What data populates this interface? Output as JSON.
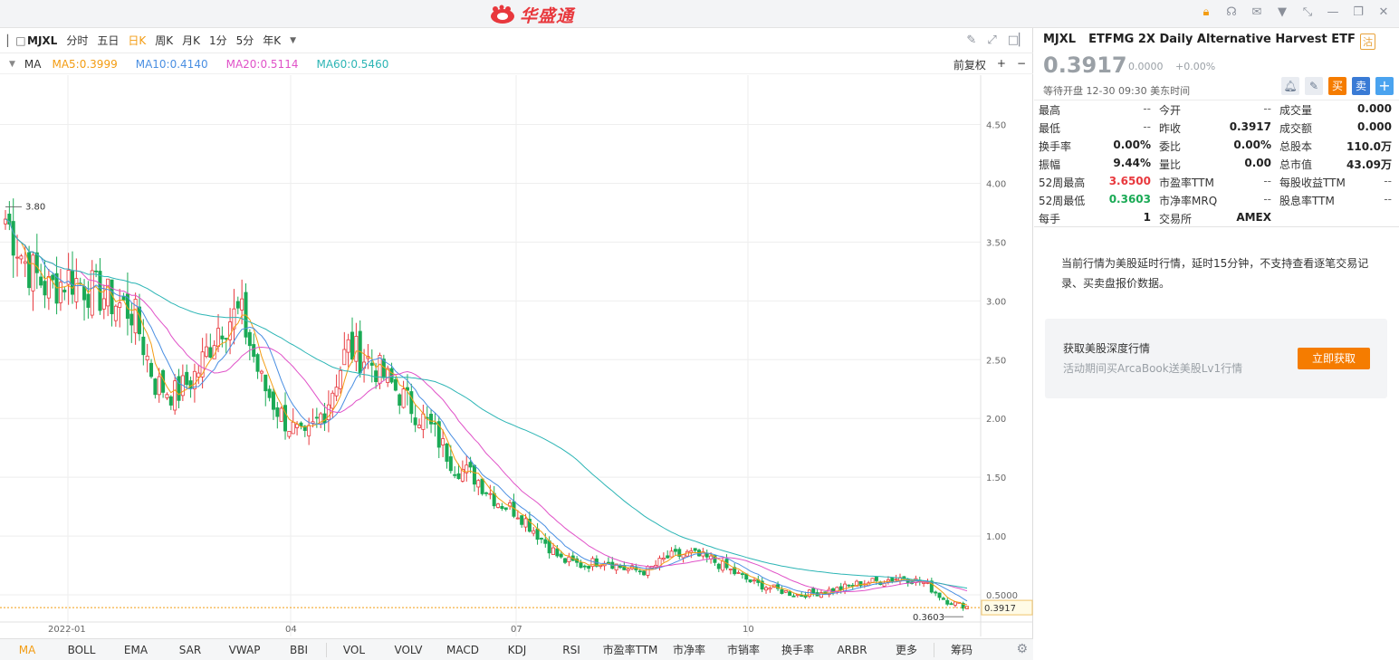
{
  "app": {
    "logo_text": "华盛通"
  },
  "toolbar": {
    "symbol": "MJXL",
    "periods": [
      "分时",
      "五日",
      "日K",
      "周K",
      "月K",
      "1分",
      "5分",
      "年K"
    ],
    "active_period": "日K"
  },
  "ma": {
    "label": "MA",
    "items": [
      {
        "text": "MA5:0.3999",
        "color": "#f39c12"
      },
      {
        "text": "MA10:0.4140",
        "color": "#4a8fe2"
      },
      {
        "text": "MA20:0.5114",
        "color": "#e052c8"
      },
      {
        "text": "MA60:0.5460",
        "color": "#2cb5b5"
      }
    ],
    "adjust": "前复权",
    "plus": "+",
    "minus": "−"
  },
  "chart_data": {
    "type": "candlestick",
    "y_ticks": [
      "4.50",
      "4.00",
      "3.50",
      "3.00",
      "2.50",
      "2.00",
      "1.50",
      "1.00",
      "0.5000"
    ],
    "x_ticks": [
      "2022-01",
      "04",
      "07",
      "10"
    ],
    "ylim": [
      0.3,
      4.92
    ],
    "current_price_label": "0.3917",
    "high_marker": "3.80",
    "low_marker": "0.3603",
    "approx_close_path": [
      3.7,
      3.3,
      3.1,
      3.2,
      3.1,
      3.0,
      2.9,
      2.3,
      2.2,
      2.4,
      2.8,
      2.9,
      2.3,
      2.0,
      1.8,
      2.1,
      2.6,
      2.5,
      2.3,
      2.1,
      1.9,
      1.6,
      1.5,
      1.3,
      1.2,
      1.0,
      0.8,
      0.75,
      0.8,
      0.72,
      0.7,
      0.82,
      0.85,
      0.8,
      0.7,
      0.6,
      0.55,
      0.5,
      0.52,
      0.55,
      0.6,
      0.62,
      0.65,
      0.6,
      0.45,
      0.4
    ]
  },
  "bottom_tabs": [
    "MA",
    "BOLL",
    "EMA",
    "SAR",
    "VWAP",
    "BBI",
    "VOL",
    "VOLV",
    "MACD",
    "KDJ",
    "RSI",
    "市盈率TTM",
    "市净率",
    "市销率",
    "换手率",
    "ARBR",
    "更多",
    "筹码"
  ],
  "quote": {
    "symbol": "MJXL",
    "name": "ETFMG 2X Daily Alternative Harvest ETF",
    "badge": "沽",
    "price": "0.3917",
    "change": "0.0000",
    "change_pct": "+0.00%",
    "status": "等待开盘 12-30 09:30 美东时间",
    "buy": "买",
    "sell": "卖",
    "add": "+",
    "rows": [
      [
        [
          "最高",
          "--"
        ],
        [
          "今开",
          "--"
        ],
        [
          "成交量",
          "0.000"
        ]
      ],
      [
        [
          "最低",
          "--"
        ],
        [
          "昨收",
          "0.3917"
        ],
        [
          "成交额",
          "0.000"
        ]
      ],
      [
        [
          "换手率",
          "0.00%"
        ],
        [
          "委比",
          "0.00%"
        ],
        [
          "总股本",
          "110.0万"
        ]
      ],
      [
        [
          "振幅",
          "9.44%"
        ],
        [
          "量比",
          "0.00"
        ],
        [
          "总市值",
          "43.09万"
        ]
      ],
      [
        [
          "52周最高",
          "3.6500"
        ],
        [
          "市盈率TTM",
          "--"
        ],
        [
          "每股收益TTM",
          "--"
        ]
      ],
      [
        [
          "52周最低",
          "0.3603"
        ],
        [
          "市净率MRQ",
          "--"
        ],
        [
          "股息率TTM",
          "--"
        ]
      ],
      [
        [
          "每手",
          "1"
        ],
        [
          "交易所",
          "AMEX"
        ],
        [
          "",
          ""
        ]
      ]
    ]
  },
  "notice": "当前行情为美股延时行情，延时15分钟，不支持查看逐笔交易记录、买卖盘报价数据。",
  "promo": {
    "title": "获取美股深度行情",
    "subtitle": "活动期间买ArcaBook送美股Lv1行情",
    "button": "立即获取"
  }
}
